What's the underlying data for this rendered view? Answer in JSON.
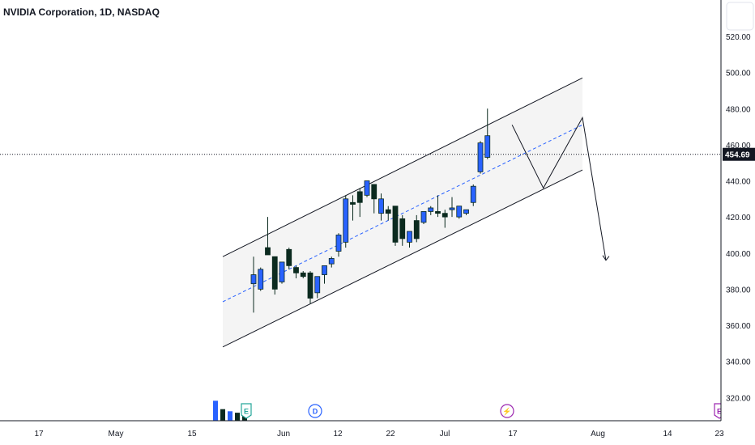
{
  "header": {
    "symbol_title": "NVIDIA Corporation, 1D, NASDAQ"
  },
  "colors": {
    "up": "#2962ff",
    "down": "#0b2a1f",
    "channel_fill": "#f4f4f4",
    "channel_line": "#131722",
    "midline": "#2962ff",
    "price_line": "#131722",
    "price_badge_bg": "#131722"
  },
  "events": [
    {
      "label": "E",
      "color": "#26a69a",
      "shape": "shield",
      "time_label": "Jun"
    },
    {
      "label": "D",
      "color": "#2962ff",
      "shape": "circle",
      "time_label": "Jun"
    },
    {
      "label": "⚡",
      "color": "#9c27b0",
      "shape": "circle",
      "time_label": "Jul"
    },
    {
      "label": "E",
      "color": "#9c27b0",
      "shape": "shield",
      "time_label": "Aug"
    }
  ],
  "chart_data": {
    "type": "candlestick",
    "title": "NVIDIA Corporation, 1D, NASDAQ",
    "last_price": 454.69,
    "last_price_label": "454.69",
    "ylim": [
      307,
      542
    ],
    "y_ticks": [
      "320.00",
      "340.00",
      "360.00",
      "380.00",
      "400.00",
      "420.00",
      "440.00",
      "460.00",
      "480.00",
      "500.00",
      "520.00"
    ],
    "x_ticks": [
      "17",
      "May",
      "15",
      "Jun",
      "12",
      "22",
      "Jul",
      "17",
      "Aug",
      "14",
      "23"
    ],
    "candles": [
      {
        "o": 383,
        "h": 398,
        "l": 367,
        "c": 388
      },
      {
        "o": 380,
        "h": 392,
        "l": 379,
        "c": 391
      },
      {
        "o": 403,
        "h": 420,
        "l": 401,
        "c": 399
      },
      {
        "o": 398,
        "h": 398,
        "l": 377,
        "c": 380
      },
      {
        "o": 384,
        "h": 394,
        "l": 383,
        "c": 395
      },
      {
        "o": 402,
        "h": 403,
        "l": 391,
        "c": 393
      },
      {
        "o": 392,
        "h": 393,
        "l": 386,
        "c": 389
      },
      {
        "o": 389,
        "h": 390,
        "l": 386,
        "c": 387
      },
      {
        "o": 389,
        "h": 390,
        "l": 372,
        "c": 375
      },
      {
        "o": 378,
        "h": 385,
        "l": 375,
        "c": 387
      },
      {
        "o": 388,
        "h": 392,
        "l": 383,
        "c": 393
      },
      {
        "o": 394,
        "h": 398,
        "l": 392,
        "c": 397
      },
      {
        "o": 401,
        "h": 411,
        "l": 398,
        "c": 410
      },
      {
        "o": 406,
        "h": 432,
        "l": 403,
        "c": 430
      },
      {
        "o": 428,
        "h": 432,
        "l": 418,
        "c": 427
      },
      {
        "o": 434,
        "h": 436,
        "l": 420,
        "c": 428
      },
      {
        "o": 432,
        "h": 440,
        "l": 431,
        "c": 440
      },
      {
        "o": 438,
        "h": 438,
        "l": 422,
        "c": 430
      },
      {
        "o": 422,
        "h": 433,
        "l": 418,
        "c": 430
      },
      {
        "o": 424,
        "h": 426,
        "l": 418,
        "c": 422
      },
      {
        "o": 426,
        "h": 426,
        "l": 404,
        "c": 406
      },
      {
        "o": 419,
        "h": 421,
        "l": 404,
        "c": 408
      },
      {
        "o": 406,
        "h": 412,
        "l": 403,
        "c": 412
      },
      {
        "o": 418,
        "h": 421,
        "l": 406,
        "c": 408
      },
      {
        "o": 417,
        "h": 423,
        "l": 416,
        "c": 423
      },
      {
        "o": 423,
        "h": 426,
        "l": 421,
        "c": 425
      },
      {
        "o": 423,
        "h": 432,
        "l": 420,
        "c": 422
      },
      {
        "o": 422,
        "h": 424,
        "l": 414,
        "c": 420
      },
      {
        "o": 424,
        "h": 431,
        "l": 420,
        "c": 425
      },
      {
        "o": 420,
        "h": 426,
        "l": 419,
        "c": 426
      },
      {
        "o": 422,
        "h": 424,
        "l": 421,
        "c": 424
      },
      {
        "o": 428,
        "h": 438,
        "l": 426,
        "c": 437
      },
      {
        "o": 445,
        "h": 462,
        "l": 444,
        "c": 461
      },
      {
        "o": 453,
        "h": 480,
        "l": 452,
        "c": 465
      }
    ],
    "volume": [
      {
        "v": 0.95,
        "up": true
      },
      {
        "v": 0.55,
        "up": false
      },
      {
        "v": 0.45,
        "up": true
      },
      {
        "v": 0.38,
        "up": false
      },
      {
        "v": 0.6,
        "up": false
      }
    ],
    "drawings": {
      "channel_upper": [
        [
          0,
          398
        ],
        [
          46,
          497
        ]
      ],
      "channel_lower": [
        [
          0,
          348
        ],
        [
          46,
          446
        ]
      ],
      "channel_mid": [
        [
          0,
          373
        ],
        [
          46,
          471
        ]
      ],
      "projection_path": [
        [
          37,
          471
        ],
        [
          41,
          436
        ],
        [
          46,
          475
        ],
        [
          49,
          396
        ]
      ]
    }
  }
}
